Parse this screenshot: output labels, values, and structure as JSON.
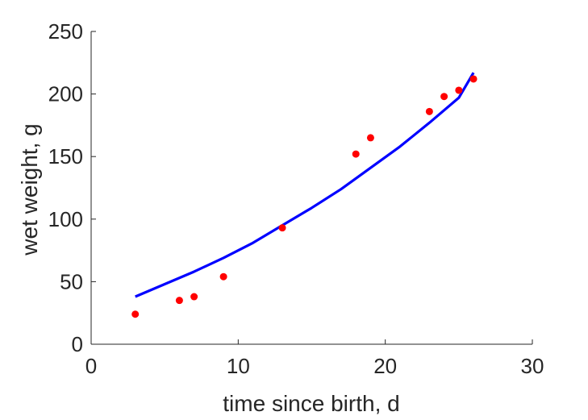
{
  "chart_data": {
    "type": "scatter",
    "xlabel": "time since birth, d",
    "ylabel": "wet weight, g",
    "xlim": [
      0,
      30
    ],
    "ylim": [
      0,
      250
    ],
    "x_ticks": [
      0,
      10,
      20,
      30
    ],
    "y_ticks": [
      0,
      50,
      100,
      150,
      200,
      250
    ],
    "x_tick_labels": [
      "0",
      "10",
      "20",
      "30"
    ],
    "y_tick_labels": [
      "0",
      "50",
      "100",
      "150",
      "200",
      "250"
    ],
    "grid": false,
    "series": [
      {
        "kind": "points",
        "color": "#ff0000",
        "x": [
          3,
          6,
          7,
          9,
          13,
          18,
          19,
          23,
          24,
          25,
          26
        ],
        "y": [
          24,
          35,
          38,
          54,
          93,
          152,
          165,
          186,
          198,
          203,
          212
        ]
      },
      {
        "kind": "line",
        "color": "#0000ff",
        "x": [
          3,
          5,
          7,
          9,
          11,
          13,
          15,
          17,
          19,
          21,
          23,
          25,
          26
        ],
        "y": [
          38,
          48,
          58,
          69,
          81,
          95,
          109,
          124,
          141,
          158,
          177,
          197,
          217
        ]
      }
    ]
  }
}
